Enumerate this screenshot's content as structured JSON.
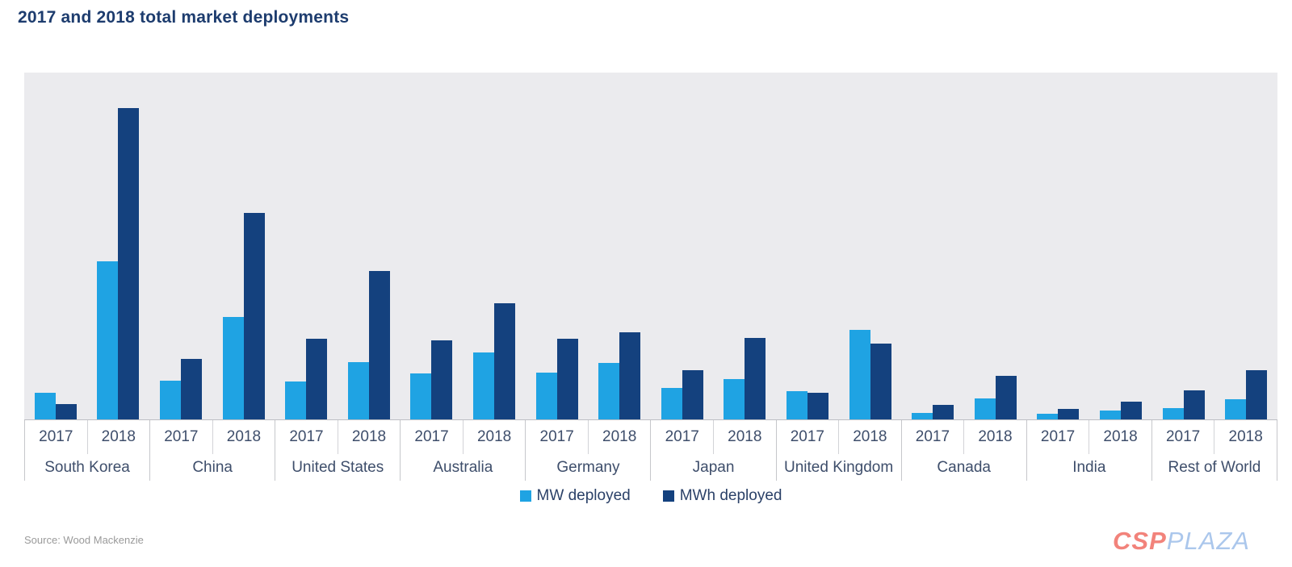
{
  "page": {
    "title": "2017 and 2018 total market deployments",
    "source": "Source: Wood Mackenzie",
    "logo": {
      "part1": "CSP",
      "part2": "PLAZA"
    }
  },
  "colors": {
    "mw_light_blue": "#1fa3e3",
    "mwh_dark_navy": "#14417e",
    "title_navy": "#1d3c6e",
    "axis_text": "#3e4e6b",
    "plot_background": "#ebebee",
    "logo_csp": "#f2837b",
    "logo_plaza": "#abc7ec"
  },
  "chart_data": {
    "type": "bar",
    "title": "2017 and 2018 total market deployments",
    "categories": [
      "South Korea",
      "China",
      "United States",
      "Australia",
      "Germany",
      "Japan",
      "United Kingdom",
      "Canada",
      "India",
      "Rest of World"
    ],
    "x_sub_labels": [
      "2017",
      "2018"
    ],
    "series": [
      {
        "name": "MW deployed",
        "color": "#1fa3e3",
        "values": {
          "2017": [
            33,
            48,
            47,
            57,
            58,
            39,
            35,
            8,
            7,
            14
          ],
          "2018": [
            196,
            127,
            71,
            83,
            70,
            50,
            111,
            26,
            11,
            25
          ]
        }
      },
      {
        "name": "MWh deployed",
        "color": "#14417e",
        "values": {
          "2017": [
            19,
            75,
            100,
            98,
            100,
            61,
            33,
            18,
            13,
            36
          ],
          "2018": [
            386,
            256,
            184,
            144,
            108,
            101,
            94,
            54,
            22,
            61
          ]
        }
      }
    ],
    "units": "relative bar height units (chart displays no y-axis scale or gridlines)",
    "ylim": [
      0,
      430
    ],
    "xlabel": "",
    "ylabel": "",
    "grid": false,
    "legend_position": "bottom"
  }
}
